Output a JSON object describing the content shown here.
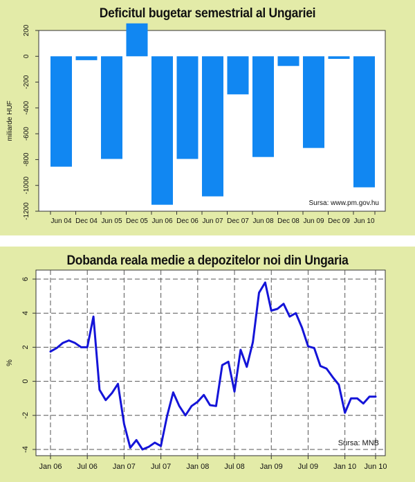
{
  "chart_data": [
    {
      "type": "bar",
      "title": "Deficitul bugetar semestrial al Ungariei",
      "ylabel": "miliarde HUF",
      "source": "Sursa: www.pm.gov.hu",
      "categories": [
        "Jun 04",
        "Dec 04",
        "Jun 05",
        "Dec 05",
        "Jun 06",
        "Dec 06",
        "Jun 07",
        "Dec 07",
        "Jun 08",
        "Dec 08",
        "Jun 09",
        "Dec 09",
        "Jun 10"
      ],
      "values": [
        -855,
        -30,
        -795,
        255,
        -1150,
        -795,
        -1085,
        -295,
        -780,
        -75,
        -710,
        -20,
        -1015
      ],
      "yticks": [
        200,
        0,
        -200,
        -400,
        -600,
        -800,
        -1000,
        -1200
      ],
      "ylim": [
        -1200,
        200
      ],
      "color": "#1187f2",
      "grid": false
    },
    {
      "type": "line",
      "title": "Dobanda reala medie a depozitelor noi din Ungaria",
      "ylabel": "%",
      "source": "Sursa: MNB",
      "xticks": [
        "Jan 06",
        "Jul 06",
        "Jan 07",
        "Jul 07",
        "Jan 08",
        "Jul 08",
        "Jan 09",
        "Jul 09",
        "Jan 10",
        "Jun 10"
      ],
      "yticks": [
        6,
        4,
        2,
        0,
        -2,
        -4
      ],
      "ylim": [
        -4,
        6
      ],
      "xlim": [
        0,
        53
      ],
      "color": "#1414d8",
      "grid": true,
      "x": [
        0,
        1,
        2,
        3,
        4,
        5,
        6,
        7,
        8,
        9,
        10,
        11,
        12,
        13,
        14,
        15,
        16,
        17,
        18,
        19,
        20,
        21,
        22,
        23,
        24,
        25,
        26,
        27,
        28,
        29,
        30,
        31,
        32,
        33,
        34,
        35,
        36,
        37,
        38,
        39,
        40,
        41,
        42,
        43,
        44,
        45,
        46,
        47,
        48,
        49,
        50,
        51,
        52,
        53
      ],
      "y": [
        1.75,
        1.95,
        2.25,
        2.4,
        2.25,
        2.0,
        2.0,
        3.8,
        -0.5,
        -1.1,
        -0.7,
        -0.15,
        -2.5,
        -3.9,
        -3.45,
        -4.0,
        -3.85,
        -3.6,
        -3.8,
        -2.05,
        -0.65,
        -1.45,
        -2.0,
        -1.45,
        -1.2,
        -0.8,
        -1.4,
        -1.45,
        0.95,
        1.15,
        -0.6,
        1.85,
        0.85,
        2.3,
        5.2,
        5.8,
        4.15,
        4.25,
        4.55,
        3.8,
        4.0,
        3.15,
        2.05,
        1.95,
        0.9,
        0.75,
        0.25,
        -0.2,
        -1.85,
        -1.0,
        -1.0,
        -1.3,
        -0.9,
        -0.9
      ]
    }
  ]
}
